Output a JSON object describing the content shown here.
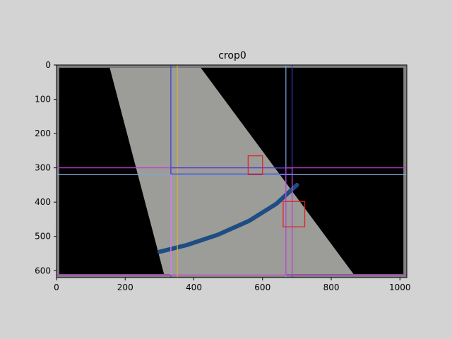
{
  "chart_data": {
    "type": "image",
    "title": "crop0",
    "xlabel": "",
    "ylabel": "",
    "xlim": [
      0,
      1020
    ],
    "ylim": [
      620,
      0
    ],
    "y_axis_inverted": true,
    "grid": false,
    "x_ticks": [
      0,
      200,
      400,
      600,
      800,
      1000
    ],
    "y_ticks": [
      0,
      100,
      200,
      300,
      400,
      500,
      600
    ],
    "image_content": {
      "background": "#000000",
      "border_color": "#7f7f7f",
      "fabric_band": {
        "color": "#9c9c98",
        "corners": [
          [
            155,
            8
          ],
          [
            420,
            8
          ],
          [
            865,
            610
          ],
          [
            313,
            610
          ]
        ]
      },
      "blue_stripe": {
        "color": "#1d4d82",
        "points": [
          [
            300,
            545
          ],
          [
            380,
            525
          ],
          [
            470,
            495
          ],
          [
            560,
            455
          ],
          [
            640,
            405
          ],
          [
            700,
            350
          ]
        ]
      }
    },
    "overlay_lines": [
      {
        "orientation": "vertical",
        "value": 333,
        "color": "#3b3bd1"
      },
      {
        "orientation": "vertical",
        "value": 686,
        "color": "#3b3bd1"
      },
      {
        "orientation": "vertical",
        "value": 352,
        "color": "#d1b13b"
      },
      {
        "orientation": "vertical",
        "value": 668,
        "color": "#7ca5e0"
      },
      {
        "orientation": "horizontal",
        "value": 300,
        "color": "#c23bd6"
      },
      {
        "orientation": "horizontal",
        "value": 320,
        "color": "#d1b13b"
      },
      {
        "orientation": "horizontal",
        "value": 320,
        "color": "#7ca5e0"
      },
      {
        "orientation": "horizontal",
        "value": 612,
        "color": "#c23bd6"
      }
    ],
    "overlay_boxes": [
      {
        "x0": 333,
        "y0": 300,
        "x1": 686,
        "y1": 612,
        "color": "#ee82ee"
      },
      {
        "x0": 333,
        "y0": 300,
        "x1": 686,
        "y1": 318,
        "color": "#3b3bd1"
      },
      {
        "x0": 668,
        "y0": 300,
        "x1": 686,
        "y1": 612,
        "color": "#c23bd6"
      },
      {
        "x0": 558,
        "y0": 265,
        "x1": 600,
        "y1": 320,
        "color": "#e02020"
      },
      {
        "x0": 660,
        "y0": 398,
        "x1": 723,
        "y1": 472,
        "color": "#e02020"
      }
    ]
  }
}
